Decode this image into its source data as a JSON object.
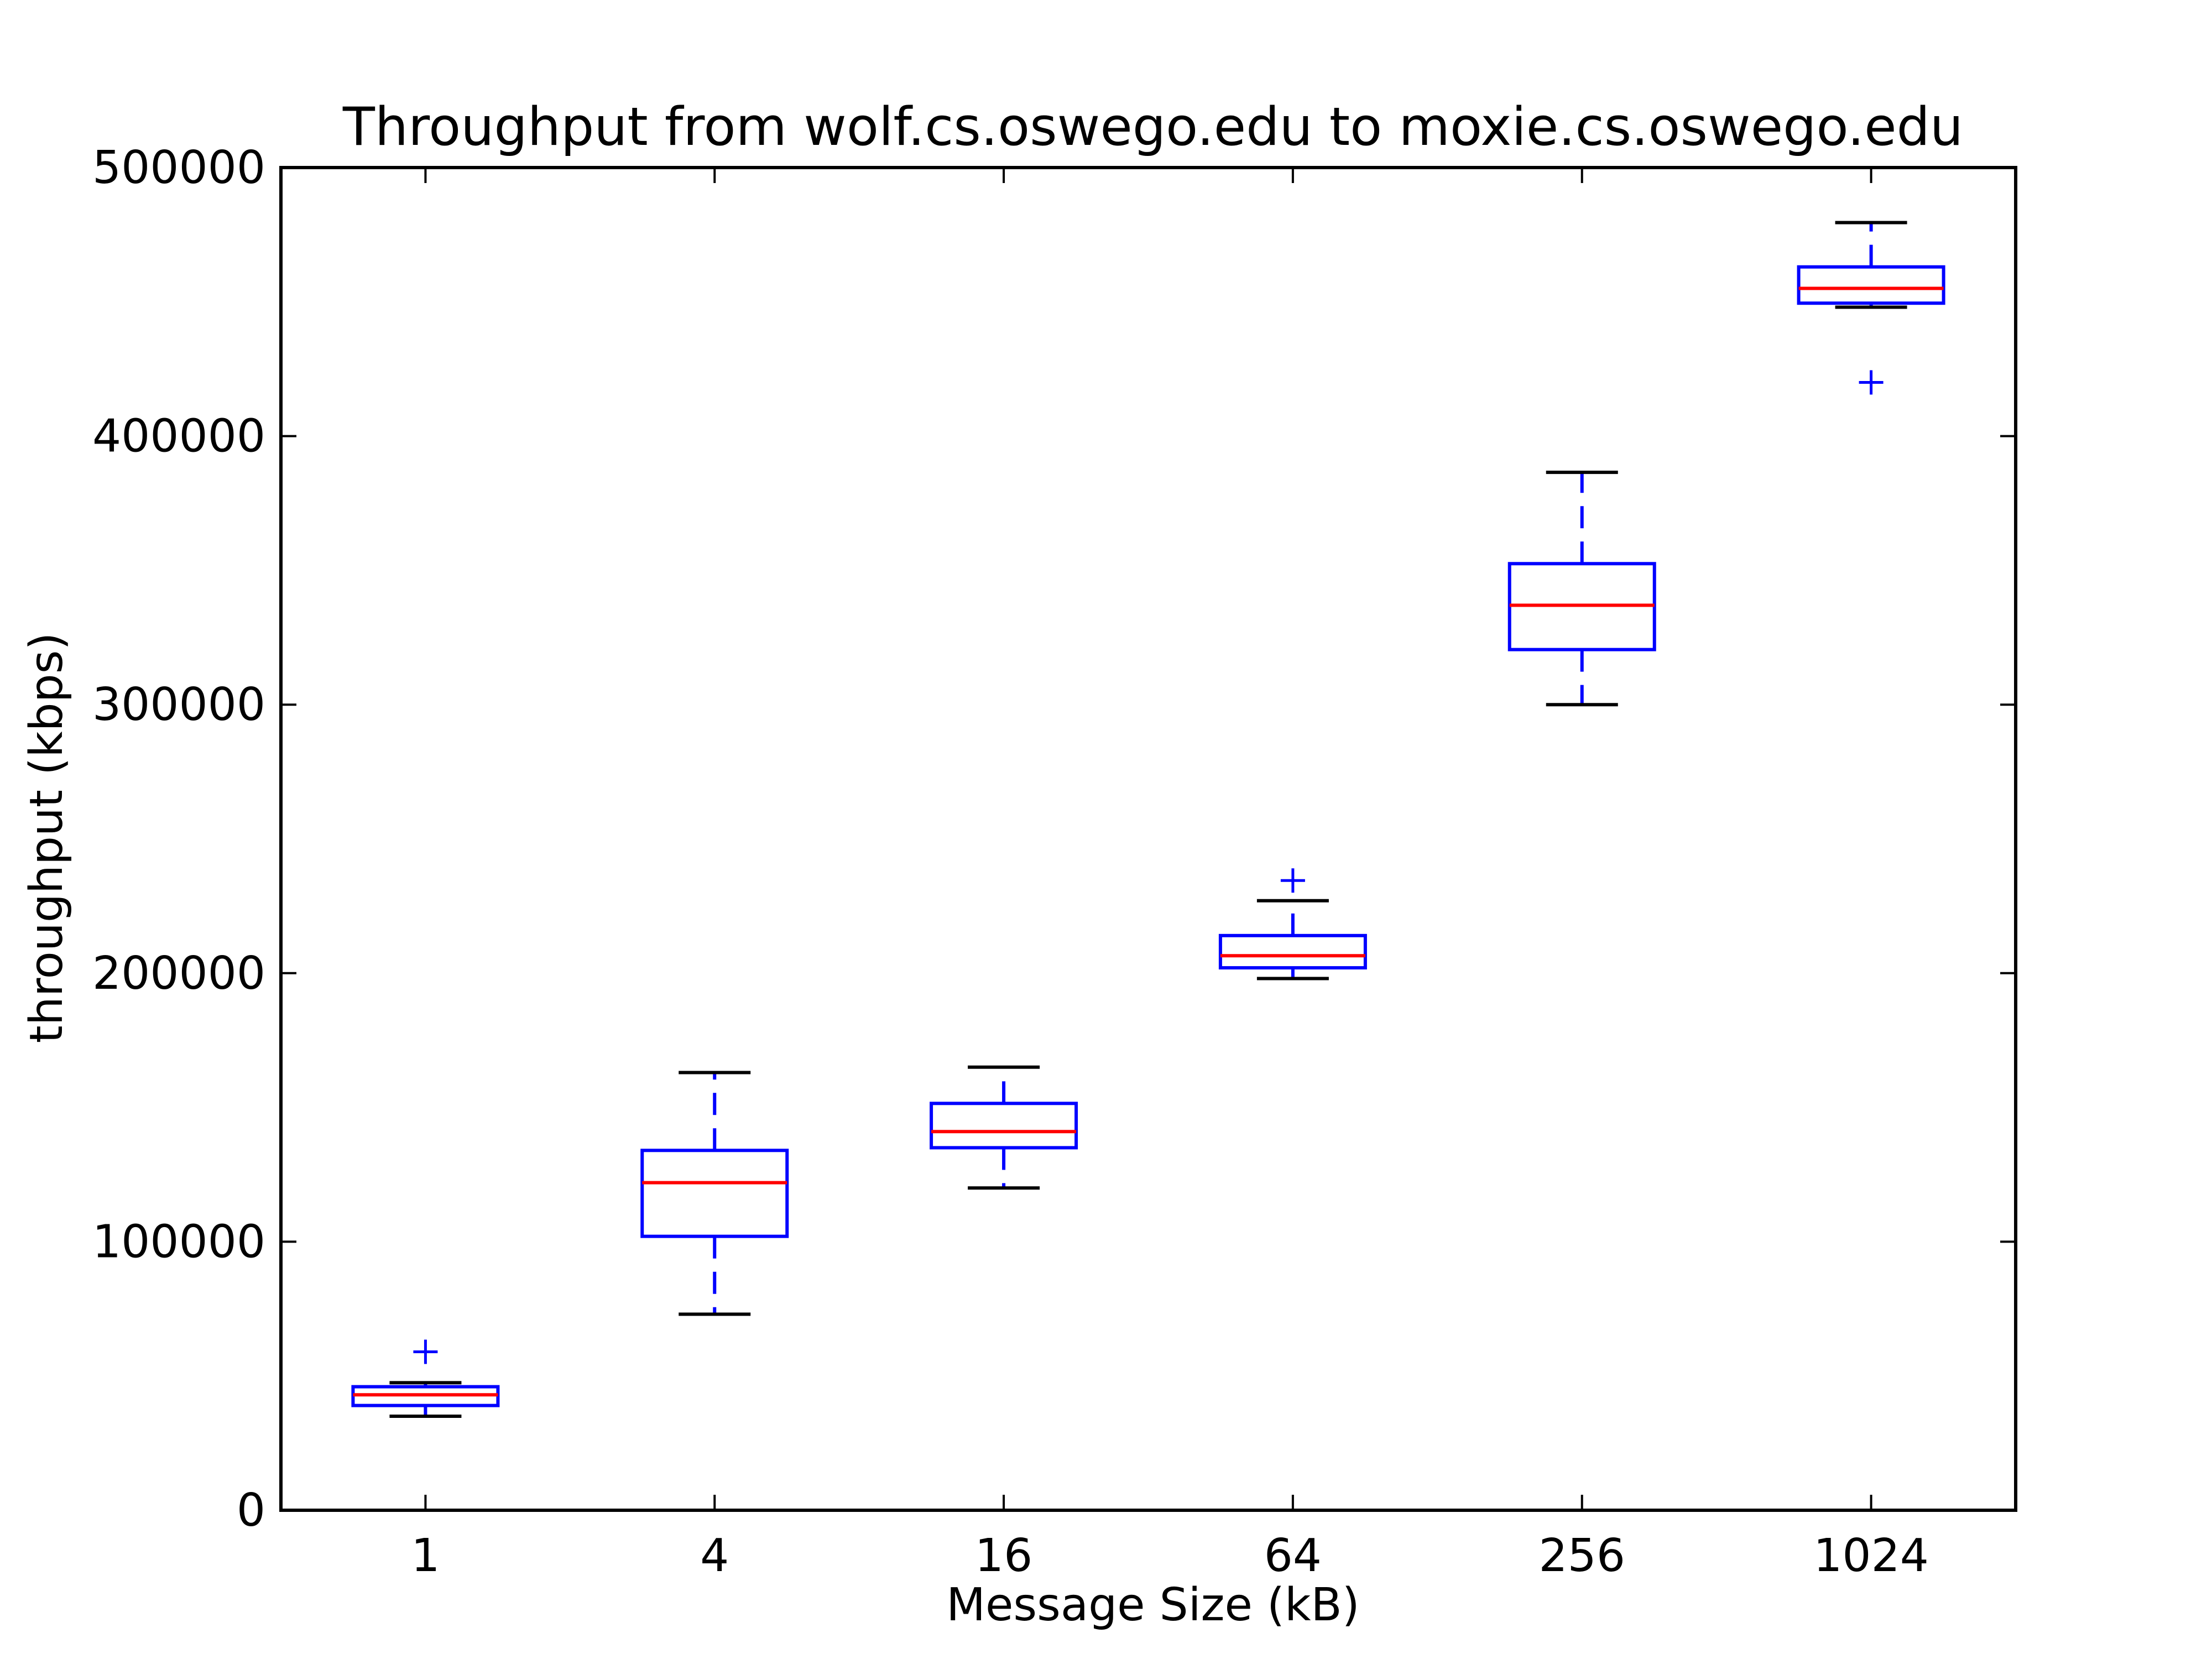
{
  "chart_data": {
    "type": "box",
    "title": "Throughput from wolf.cs.oswego.edu to moxie.cs.oswego.edu",
    "xlabel": "Message Size (kB)",
    "ylabel": "throughput (kbps)",
    "ylim": [
      0,
      500000
    ],
    "yticks": [
      0,
      100000,
      200000,
      300000,
      400000,
      500000
    ],
    "ytick_labels": [
      "0",
      "100000",
      "200000",
      "300000",
      "400000",
      "500000"
    ],
    "categories": [
      "1",
      "4",
      "16",
      "64",
      "256",
      "1024"
    ],
    "boxes": [
      {
        "category": "1",
        "whisker_low": 35000,
        "q1": 39000,
        "median": 43000,
        "q3": 46000,
        "whisker_high": 47500,
        "outliers": [
          59000
        ]
      },
      {
        "category": "4",
        "whisker_low": 73000,
        "q1": 102000,
        "median": 122000,
        "q3": 134000,
        "whisker_high": 163000,
        "outliers": []
      },
      {
        "category": "16",
        "whisker_low": 120000,
        "q1": 135000,
        "median": 141000,
        "q3": 151500,
        "whisker_high": 165000,
        "outliers": []
      },
      {
        "category": "64",
        "whisker_low": 198000,
        "q1": 202000,
        "median": 206500,
        "q3": 214000,
        "whisker_high": 227000,
        "outliers": [
          234500
        ]
      },
      {
        "category": "256",
        "whisker_low": 300000,
        "q1": 320500,
        "median": 337000,
        "q3": 352500,
        "whisker_high": 386500,
        "outliers": []
      },
      {
        "category": "1024",
        "whisker_low": 448000,
        "q1": 449500,
        "median": 455000,
        "q3": 463000,
        "whisker_high": 479500,
        "outliers": [
          420000
        ]
      }
    ],
    "colors": {
      "box": "#0000ff",
      "median": "#ff0000",
      "whisker_cap": "#000000",
      "outlier": "#0000ff",
      "axes": "#000000"
    },
    "grid": false,
    "legend": "none"
  }
}
